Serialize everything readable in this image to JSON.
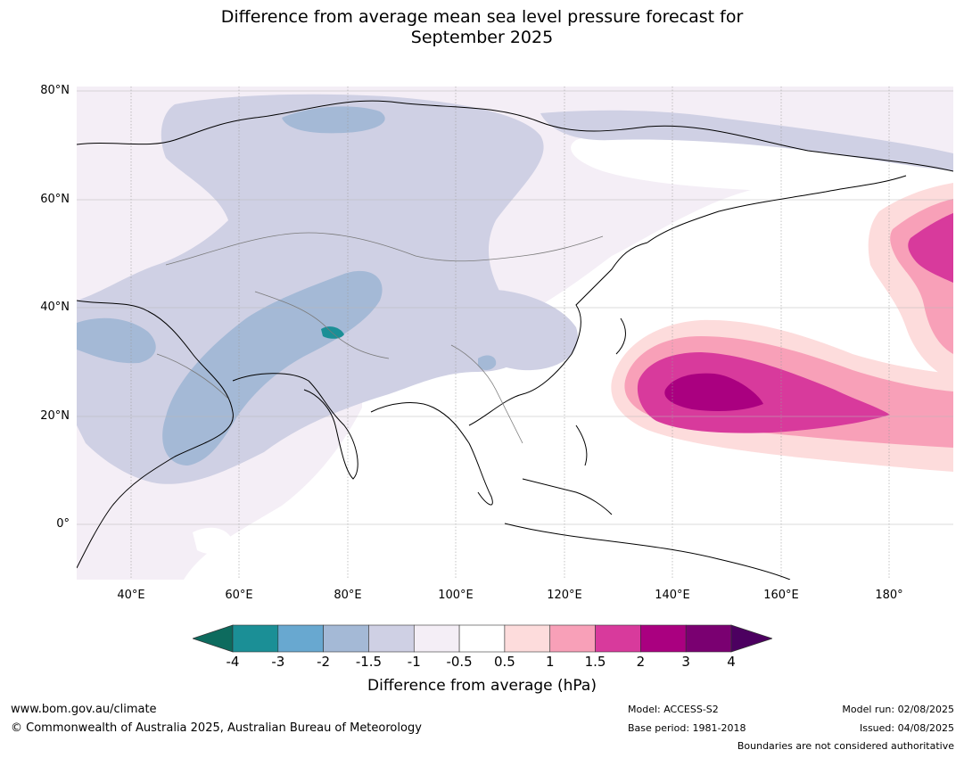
{
  "title": {
    "line1": "Difference from average mean sea level pressure forecast for",
    "line2": "September 2025"
  },
  "map": {
    "latitude_labels": [
      "80°N",
      "60°N",
      "40°N",
      "20°N",
      "0°"
    ],
    "longitude_labels": [
      "40°E",
      "60°E",
      "80°E",
      "100°E",
      "120°E",
      "140°E",
      "160°E",
      "180°"
    ],
    "extent": {
      "lon": [
        30,
        191
      ],
      "lat": [
        -10,
        81
      ]
    }
  },
  "colorbar": {
    "title": "Difference from average (hPa)",
    "ticks": [
      "-4",
      "-3",
      "-2",
      "-1.5",
      "-1",
      "-0.5",
      "0.5",
      "1",
      "1.5",
      "2",
      "3",
      "4"
    ],
    "under_color": "#0d6b5e",
    "over_color": "#4c0060",
    "colors": [
      "#1b8f96",
      "#68a8d0",
      "#a4b9d6",
      "#cfd0e4",
      "#f4eef6",
      "#ffffff",
      "#fddcdc",
      "#f8a0b8",
      "#d83a9c",
      "#aa0080",
      "#7a0071"
    ]
  },
  "footer": {
    "website": "www.bom.gov.au/climate",
    "copyright": "© Commonwealth of Australia 2025, Australian Bureau of Meteorology",
    "model": "Model: ACCESS-S2",
    "base_period": "Base period: 1981-2018",
    "model_run": "Model run: 02/08/2025",
    "issued": "Issued: 04/08/2025",
    "disclaimer": "Boundaries are not considered authoritative"
  }
}
